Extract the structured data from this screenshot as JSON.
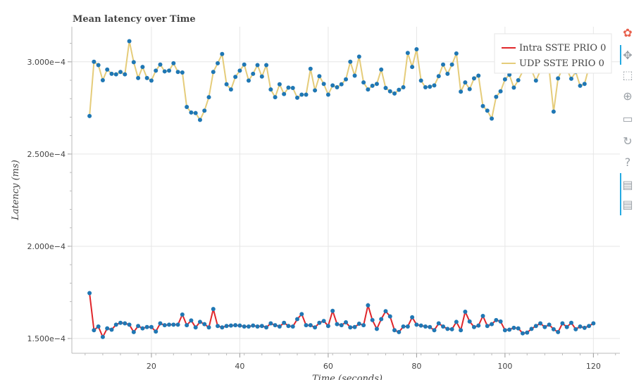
{
  "chart_data": {
    "type": "line",
    "title": "Mean latency over Time",
    "xlabel": "Time (seconds)",
    "ylabel": "Latency (ms)",
    "xlim": [
      2,
      126
    ],
    "ylim": [
      0.000142,
      0.000319
    ],
    "x_ticks": [
      20,
      40,
      60,
      80,
      100,
      120
    ],
    "y_ticks": [
      0.00015,
      0.0002,
      0.00025,
      0.0003
    ],
    "y_tick_labels": [
      "1.500e−4",
      "2.000e−4",
      "2.500e−4",
      "3.000e−4"
    ],
    "x_tick_labels": [
      "20",
      "40",
      "60",
      "80",
      "100",
      "120"
    ],
    "grid": true,
    "legend_position": "top-right",
    "x": [
      6,
      7,
      8,
      9,
      10,
      11,
      12,
      13,
      14,
      15,
      16,
      17,
      18,
      19,
      20,
      21,
      22,
      23,
      24,
      25,
      26,
      27,
      28,
      29,
      30,
      31,
      32,
      33,
      34,
      35,
      36,
      37,
      38,
      39,
      40,
      41,
      42,
      43,
      44,
      45,
      46,
      47,
      48,
      49,
      50,
      51,
      52,
      53,
      54,
      55,
      56,
      57,
      58,
      59,
      60,
      61,
      62,
      63,
      64,
      65,
      66,
      67,
      68,
      69,
      70,
      71,
      72,
      73,
      74,
      75,
      76,
      77,
      78,
      79,
      80,
      81,
      82,
      83,
      84,
      85,
      86,
      87,
      88,
      89,
      90,
      91,
      92,
      93,
      94,
      95,
      96,
      97,
      98,
      99,
      100,
      101,
      102,
      103,
      104,
      105,
      106,
      107,
      108,
      109,
      110,
      111,
      112,
      113,
      114,
      115,
      116,
      117,
      118,
      119,
      120
    ],
    "series": [
      {
        "name": "Intra SSTE PRIO 0",
        "color": "#e0262b",
        "values": [
          0.0001746,
          0.0001545,
          0.0001565,
          0.0001508,
          0.0001555,
          0.0001548,
          0.0001575,
          0.0001585,
          0.0001582,
          0.0001575,
          0.0001535,
          0.0001568,
          0.0001555,
          0.0001562,
          0.0001562,
          0.0001538,
          0.0001582,
          0.0001572,
          0.0001575,
          0.0001575,
          0.0001575,
          0.000163,
          0.0001572,
          0.0001598,
          0.000156,
          0.000159,
          0.0001578,
          0.000156,
          0.000166,
          0.0001568,
          0.000156,
          0.0001568,
          0.000157,
          0.0001572,
          0.000157,
          0.0001565,
          0.0001565,
          0.000157,
          0.0001565,
          0.0001568,
          0.000156,
          0.0001582,
          0.0001572,
          0.0001565,
          0.0001585,
          0.0001568,
          0.0001565,
          0.0001605,
          0.0001632,
          0.0001572,
          0.0001572,
          0.000156,
          0.0001585,
          0.0001595,
          0.0001568,
          0.000165,
          0.0001578,
          0.0001572,
          0.0001588,
          0.000156,
          0.0001562,
          0.000158,
          0.0001572,
          0.000168,
          0.00016,
          0.0001552,
          0.0001605,
          0.0001648,
          0.000162,
          0.0001545,
          0.0001535,
          0.0001565,
          0.0001565,
          0.0001615,
          0.0001575,
          0.000157,
          0.0001565,
          0.0001562,
          0.0001545,
          0.0001582,
          0.0001565,
          0.0001552,
          0.000155,
          0.000159,
          0.0001545,
          0.0001645,
          0.0001592,
          0.0001562,
          0.000157,
          0.0001622,
          0.0001568,
          0.0001578,
          0.00016,
          0.0001592,
          0.0001545,
          0.0001548,
          0.0001558,
          0.0001555,
          0.0001528,
          0.0001532,
          0.0001552,
          0.0001568,
          0.0001582,
          0.0001562,
          0.0001575,
          0.000155,
          0.0001535,
          0.0001582,
          0.0001562,
          0.0001585,
          0.000155,
          0.0001565,
          0.0001558,
          0.0001568,
          0.0001582
        ]
      },
      {
        "name": "UDP SSTE PRIO 0",
        "color": "#e5cc7a",
        "values": [
          0.0002706,
          0.0003,
          0.0002982,
          0.00029,
          0.0002958,
          0.0002935,
          0.0002932,
          0.0002945,
          0.0002932,
          0.0003112,
          0.0002998,
          0.0002912,
          0.0002972,
          0.0002912,
          0.0002898,
          0.0002952,
          0.0002985,
          0.0002948,
          0.0002952,
          0.0002992,
          0.0002945,
          0.0002942,
          0.0002755,
          0.0002725,
          0.0002722,
          0.0002685,
          0.0002735,
          0.0002808,
          0.0002945,
          0.0002992,
          0.0003042,
          0.0002878,
          0.000285,
          0.0002918,
          0.0002952,
          0.0002985,
          0.0002898,
          0.0002935,
          0.0002982,
          0.000292,
          0.0002982,
          0.000285,
          0.0002808,
          0.0002878,
          0.0002825,
          0.000286,
          0.0002858,
          0.0002805,
          0.0002822,
          0.0002822,
          0.0002962,
          0.0002845,
          0.0002922,
          0.000288,
          0.0002822,
          0.0002872,
          0.0002862,
          0.0002878,
          0.0002905,
          0.0003,
          0.0002925,
          0.0003028,
          0.0002888,
          0.000285,
          0.000287,
          0.000288,
          0.0002958,
          0.0002858,
          0.000284,
          0.0002828,
          0.0002848,
          0.0002862,
          0.0003048,
          0.0002972,
          0.0003068,
          0.0002898,
          0.0002862,
          0.0002865,
          0.0002872,
          0.0002922,
          0.0002985,
          0.0002935,
          0.0002985,
          0.0003045,
          0.0002838,
          0.0002888,
          0.0002852,
          0.000291,
          0.0002925,
          0.000276,
          0.0002735,
          0.0002692,
          0.000281,
          0.000284,
          0.0002905,
          0.000293,
          0.000286,
          0.00029,
          0.0002948,
          0.000297,
          0.0002955,
          0.0002898,
          0.0002952,
          0.0002965,
          0.0002958,
          0.000273,
          0.000291,
          0.0002962,
          0.0002958,
          0.0002908,
          0.0002945,
          0.000287,
          0.000288,
          0.0002972,
          0.000296
        ]
      }
    ],
    "marker_color": "#1f77b4"
  },
  "toolbar": {
    "tools": [
      {
        "name": "bokeh-logo-icon",
        "glyph": "✿"
      },
      {
        "name": "pan-icon",
        "glyph": "✥"
      },
      {
        "name": "box-zoom-icon",
        "glyph": "⬚"
      },
      {
        "name": "wheel-zoom-icon",
        "glyph": "⊕"
      },
      {
        "name": "save-icon",
        "glyph": "▭"
      },
      {
        "name": "reset-icon",
        "glyph": "↻"
      },
      {
        "name": "help-icon",
        "glyph": "?"
      },
      {
        "name": "hover-icon-1",
        "glyph": "▤"
      },
      {
        "name": "hover-icon-2",
        "glyph": "▤"
      }
    ]
  }
}
